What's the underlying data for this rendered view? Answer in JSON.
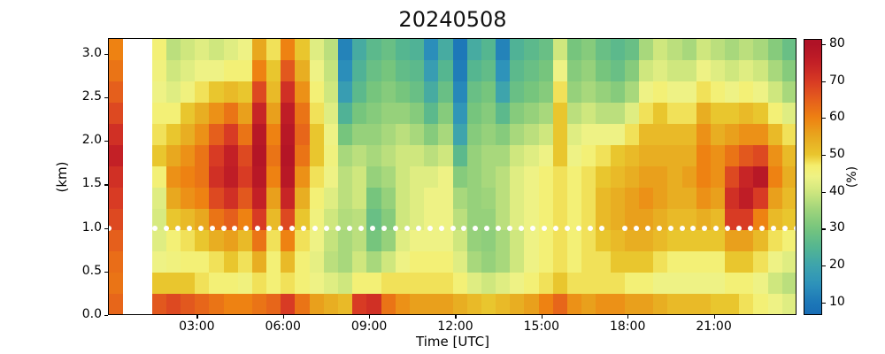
{
  "figure": {
    "background": "#ffffff"
  },
  "chart_data": {
    "type": "heatmap",
    "title": "20240508",
    "xlabel": "Time [UTC]",
    "ylabel": "(km)",
    "colorbar_label": "(%)",
    "x_tick_labels": [
      "03:00",
      "06:00",
      "09:00",
      "12:00",
      "15:00",
      "18:00",
      "21:00"
    ],
    "x_tick_hours": [
      3,
      6,
      9,
      12,
      15,
      18,
      21
    ],
    "x_range_hours": [
      0,
      23.94
    ],
    "y_tick_labels": [
      "0.0",
      "0.5",
      "1.0",
      "1.5",
      "2.0",
      "2.5",
      "3.0"
    ],
    "y_tick_km": [
      0.0,
      0.5,
      1.0,
      1.5,
      2.0,
      2.5,
      3.0
    ],
    "y_range_km": [
      0,
      3.17
    ],
    "colorbar_tick_labels": [
      "10",
      "20",
      "30",
      "40",
      "50",
      "60",
      "70",
      "80"
    ],
    "colorbar_tick_values": [
      10,
      20,
      30,
      40,
      50,
      60,
      70,
      80
    ],
    "colorbar_range": [
      6.6,
      81.4
    ],
    "colormap_stops": [
      [
        5,
        "#1668b3"
      ],
      [
        10,
        "#1d78b8"
      ],
      [
        15,
        "#2e93ba"
      ],
      [
        20,
        "#3ea4ac"
      ],
      [
        25,
        "#55b690"
      ],
      [
        30,
        "#76c57d"
      ],
      [
        35,
        "#9ed47b"
      ],
      [
        40,
        "#cfe77e"
      ],
      [
        44,
        "#eef285"
      ],
      [
        47,
        "#f5ef6f"
      ],
      [
        50,
        "#e9c62e"
      ],
      [
        55,
        "#e8a81f"
      ],
      [
        60,
        "#ee8212"
      ],
      [
        65,
        "#e55f1c"
      ],
      [
        70,
        "#d83b24"
      ],
      [
        75,
        "#c32026"
      ],
      [
        80,
        "#b01226"
      ],
      [
        82,
        "#aa0d24"
      ]
    ],
    "missing_data_color": "#ffffff",
    "grid": {
      "time_start_hour": 0.0,
      "time_step_hours": 0.5,
      "n_columns": 48,
      "row_top_km": 3.17,
      "n_rows": 13,
      "columns_missing": [
        1,
        2
      ],
      "values_percent_rows_top_to_bottom": [
        [
          60,
          null,
          null,
          46,
          38,
          40,
          42,
          40,
          42,
          44,
          55,
          48,
          60,
          50,
          42,
          38,
          12,
          22,
          26,
          28,
          25,
          24,
          14,
          22,
          10,
          22,
          25,
          12,
          24,
          26,
          28,
          40,
          30,
          32,
          28,
          26,
          28,
          36,
          40,
          38,
          36,
          40,
          38,
          36,
          38,
          36,
          32,
          28
        ],
        [
          62,
          null,
          null,
          45,
          40,
          42,
          44,
          44,
          46,
          46,
          60,
          50,
          66,
          54,
          44,
          39,
          14,
          24,
          28,
          30,
          27,
          26,
          18,
          25,
          11,
          25,
          27,
          15,
          26,
          28,
          30,
          44,
          32,
          34,
          30,
          28,
          32,
          40,
          42,
          40,
          40,
          44,
          42,
          40,
          42,
          40,
          36,
          32
        ],
        [
          65,
          null,
          null,
          44,
          42,
          45,
          48,
          50,
          52,
          50,
          68,
          52,
          72,
          58,
          46,
          40,
          18,
          26,
          30,
          32,
          30,
          28,
          22,
          28,
          13,
          28,
          30,
          20,
          28,
          30,
          32,
          48,
          34,
          36,
          34,
          32,
          36,
          44,
          46,
          44,
          44,
          48,
          46,
          44,
          46,
          44,
          40,
          36
        ],
        [
          68,
          null,
          null,
          46,
          46,
          50,
          54,
          58,
          62,
          56,
          74,
          56,
          76,
          62,
          48,
          42,
          24,
          30,
          32,
          34,
          34,
          32,
          26,
          32,
          16,
          30,
          32,
          26,
          32,
          34,
          36,
          50,
          38,
          40,
          38,
          38,
          42,
          48,
          50,
          48,
          48,
          54,
          50,
          50,
          52,
          50,
          46,
          42
        ],
        [
          72,
          null,
          null,
          48,
          50,
          54,
          58,
          65,
          70,
          62,
          78,
          60,
          78,
          64,
          50,
          44,
          30,
          34,
          34,
          36,
          38,
          36,
          32,
          36,
          20,
          32,
          34,
          32,
          36,
          38,
          40,
          50,
          42,
          44,
          44,
          44,
          48,
          52,
          52,
          52,
          52,
          58,
          54,
          56,
          58,
          58,
          52,
          48
        ],
        [
          75,
          null,
          null,
          50,
          55,
          58,
          62,
          70,
          75,
          68,
          79,
          62,
          79,
          62,
          50,
          45,
          36,
          38,
          36,
          38,
          40,
          40,
          38,
          40,
          26,
          34,
          36,
          36,
          40,
          42,
          44,
          50,
          44,
          46,
          48,
          50,
          52,
          54,
          54,
          54,
          54,
          60,
          58,
          62,
          66,
          68,
          58,
          52
        ],
        [
          72,
          null,
          null,
          46,
          58,
          60,
          62,
          72,
          76,
          70,
          78,
          60,
          78,
          58,
          48,
          44,
          38,
          40,
          34,
          36,
          40,
          42,
          42,
          44,
          32,
          34,
          36,
          38,
          42,
          44,
          46,
          48,
          46,
          48,
          50,
          52,
          54,
          56,
          56,
          54,
          56,
          60,
          58,
          68,
          74,
          78,
          60,
          54
        ],
        [
          70,
          null,
          null,
          42,
          55,
          58,
          60,
          68,
          72,
          66,
          75,
          56,
          74,
          54,
          46,
          42,
          38,
          40,
          30,
          34,
          40,
          42,
          44,
          44,
          36,
          34,
          35,
          38,
          42,
          44,
          46,
          48,
          46,
          48,
          52,
          54,
          56,
          58,
          56,
          54,
          54,
          58,
          56,
          72,
          76,
          70,
          56,
          52
        ],
        [
          68,
          null,
          null,
          41,
          50,
          52,
          55,
          62,
          65,
          60,
          70,
          52,
          68,
          50,
          45,
          40,
          37,
          38,
          28,
          32,
          40,
          42,
          44,
          44,
          38,
          34,
          34,
          38,
          42,
          44,
          46,
          48,
          46,
          48,
          52,
          54,
          56,
          56,
          54,
          52,
          52,
          54,
          52,
          70,
          70,
          60,
          52,
          50
        ],
        [
          65,
          null,
          null,
          42,
          46,
          48,
          50,
          54,
          56,
          52,
          62,
          48,
          60,
          48,
          44,
          39,
          36,
          38,
          30,
          34,
          42,
          44,
          44,
          44,
          40,
          34,
          33,
          36,
          40,
          44,
          46,
          48,
          46,
          48,
          50,
          52,
          54,
          54,
          52,
          50,
          50,
          50,
          50,
          56,
          56,
          52,
          48,
          46
        ],
        [
          63,
          null,
          null,
          44,
          45,
          46,
          46,
          48,
          50,
          48,
          54,
          46,
          52,
          46,
          43,
          38,
          36,
          40,
          36,
          40,
          44,
          46,
          46,
          46,
          42,
          36,
          34,
          36,
          40,
          44,
          46,
          48,
          46,
          48,
          48,
          50,
          50,
          50,
          48,
          46,
          46,
          46,
          46,
          50,
          50,
          48,
          44,
          42
        ],
        [
          62,
          null,
          null,
          50,
          50,
          50,
          48,
          46,
          46,
          45,
          48,
          46,
          48,
          46,
          44,
          42,
          40,
          46,
          46,
          48,
          48,
          48,
          48,
          48,
          46,
          42,
          40,
          42,
          44,
          46,
          48,
          50,
          48,
          48,
          48,
          48,
          46,
          46,
          44,
          44,
          44,
          44,
          44,
          46,
          46,
          44,
          40,
          38
        ],
        [
          64,
          null,
          null,
          66,
          68,
          66,
          64,
          62,
          60,
          60,
          62,
          64,
          70,
          62,
          56,
          54,
          52,
          70,
          72,
          62,
          58,
          56,
          56,
          56,
          54,
          52,
          50,
          52,
          54,
          56,
          60,
          64,
          58,
          56,
          58,
          58,
          56,
          56,
          54,
          52,
          52,
          52,
          50,
          50,
          48,
          46,
          44,
          42
        ]
      ]
    },
    "dotted_line": {
      "height_km": 1.0,
      "marker_color": "#ffffff",
      "n_markers": 61,
      "gap_hour_ranges": [
        [
          0.35,
          1.22
        ],
        [
          17.5,
          17.9
        ]
      ]
    }
  }
}
